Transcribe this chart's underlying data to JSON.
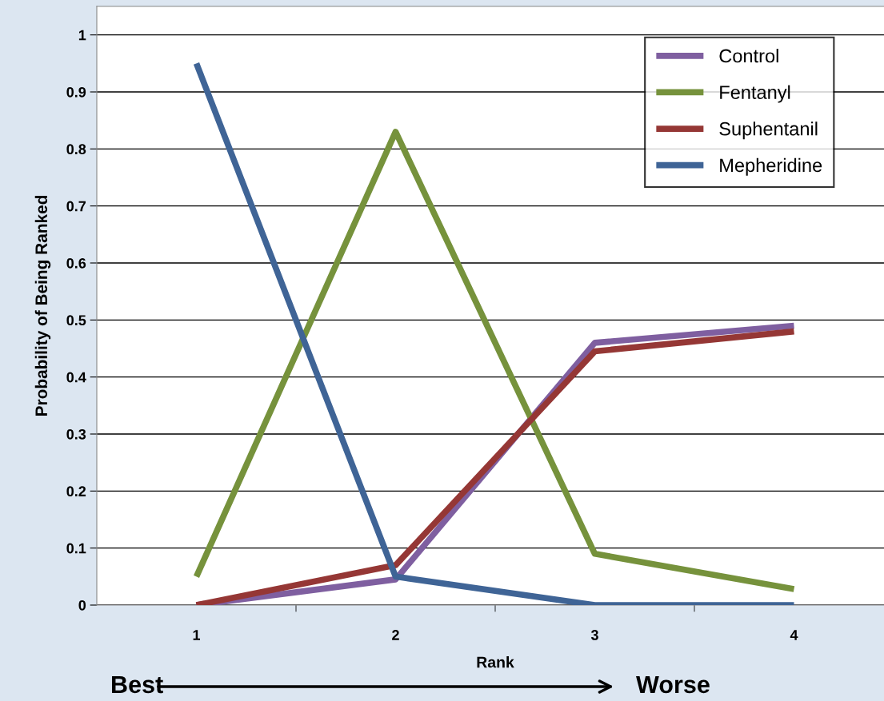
{
  "chart_data": {
    "type": "line",
    "xlabel": "Rank",
    "ylabel": "Probability of Being Ranked",
    "categories": [
      "1",
      "2",
      "3",
      "4"
    ],
    "series": [
      {
        "name": "Control",
        "color": "#7f5fa0",
        "values": [
          0,
          0.045,
          0.46,
          0.49
        ]
      },
      {
        "name": "Fentanyl",
        "color": "#76923c",
        "values": [
          0.05,
          0.83,
          0.09,
          0.028
        ]
      },
      {
        "name": "Suphentanil",
        "color": "#953735",
        "values": [
          0,
          0.07,
          0.445,
          0.48
        ]
      },
      {
        "name": "Mepheridine",
        "color": "#3f6496",
        "values": [
          0.95,
          0.05,
          0,
          0
        ]
      }
    ],
    "ylim": [
      0,
      1.05
    ],
    "yticks": [
      0,
      0.1,
      0.2,
      0.3,
      0.4,
      0.5,
      0.6,
      0.7,
      0.8,
      0.9,
      1
    ],
    "grid": "y",
    "legend": "top right",
    "marker": "none",
    "line_style": "solid",
    "annotations": [
      "Best",
      "Worse"
    ]
  }
}
